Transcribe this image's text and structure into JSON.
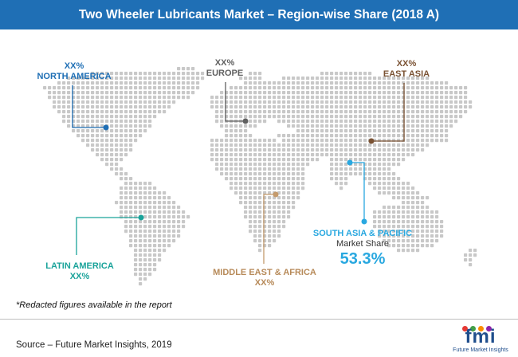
{
  "title": "Two Wheeler Lubricants Market – Region-wise Share (2018 A)",
  "regions": {
    "north_america": {
      "name": "NORTH AMERICA",
      "value": "XX%",
      "color": "#1f6fb5"
    },
    "europe": {
      "name": "EUROPE",
      "value": "XX%",
      "color": "#606060"
    },
    "east_asia": {
      "name": "EAST ASIA",
      "value": "XX%",
      "color": "#7a5233"
    },
    "latin_america": {
      "name": "LATIN AMERICA",
      "value": "XX%",
      "color": "#1aa39a"
    },
    "middle_east_africa": {
      "name": "MIDDLE EAST & AFRICA",
      "value": "XX%",
      "color": "#c49a6c"
    },
    "south_asia_pacific": {
      "name": "SOUTH ASIA & PACIFIC",
      "label": "Market Share",
      "value": "53.3%",
      "color": "#29a8e0"
    }
  },
  "footnote": "*Redacted figures available in the report",
  "source": "Source – Future Market Insights, 2019",
  "logo": {
    "word": "fmi",
    "tagline": "Future Market Insights"
  },
  "colors": {
    "title_bar": "#1f6fb5",
    "map_dot": "#c8c8c8"
  }
}
